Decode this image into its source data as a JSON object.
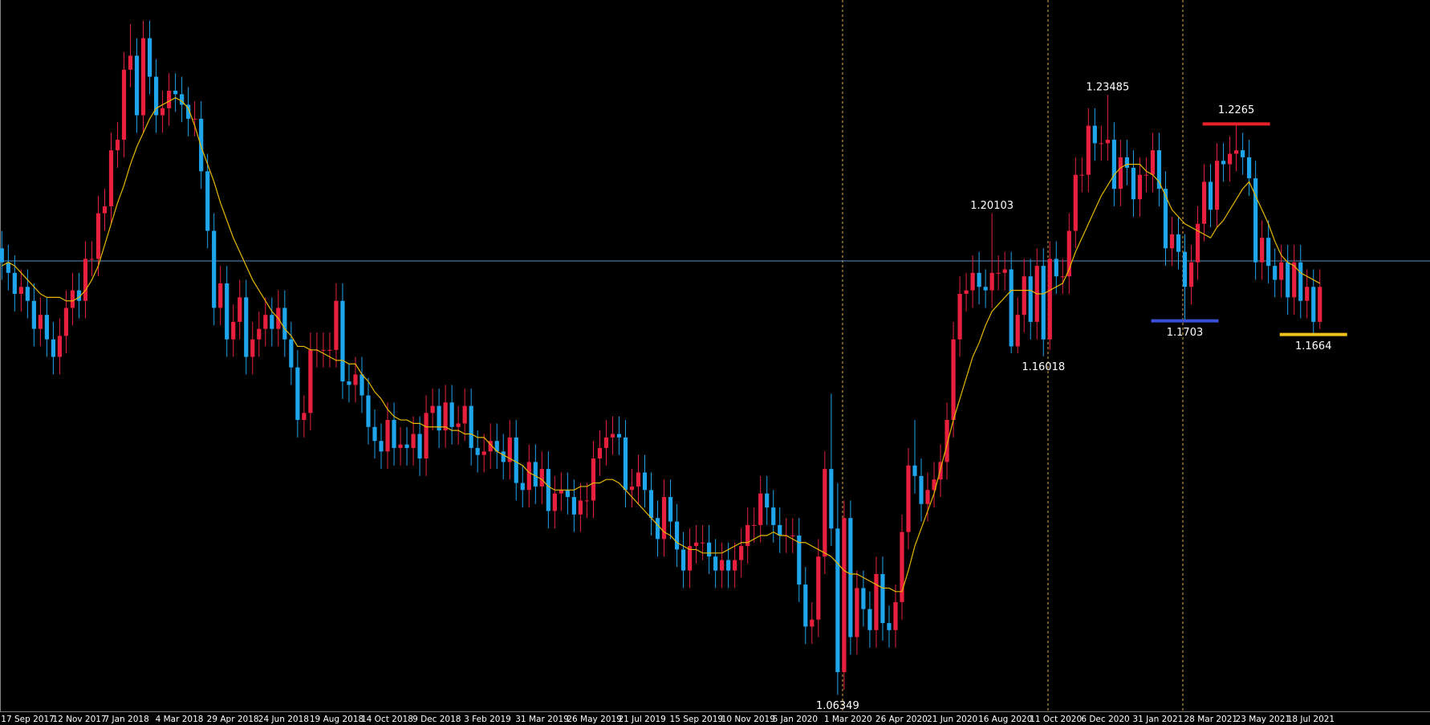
{
  "chart_data": {
    "type": "candlestick",
    "categories": [
      "17 Sep 2017",
      null,
      null,
      null,
      null,
      null,
      null,
      null,
      "12 Nov 2017",
      null,
      null,
      null,
      null,
      null,
      null,
      null,
      "7 Jan 2018",
      null,
      null,
      null,
      null,
      null,
      null,
      null,
      "4 Mar 2018",
      null,
      null,
      null,
      null,
      null,
      null,
      null,
      "29 Apr 2018",
      null,
      null,
      null,
      null,
      null,
      null,
      null,
      "24 Jun 2018",
      null,
      null,
      null,
      null,
      null,
      null,
      null,
      "19 Aug 2018",
      null,
      null,
      null,
      null,
      null,
      null,
      null,
      "14 Oct 2018",
      null,
      null,
      null,
      null,
      null,
      null,
      null,
      "9 Dec 2018",
      null,
      null,
      null,
      null,
      null,
      null,
      null,
      "3 Feb 2019",
      null,
      null,
      null,
      null,
      null,
      null,
      null,
      "31 Mar 2019",
      null,
      null,
      null,
      null,
      null,
      null,
      null,
      "26 May 2019",
      null,
      null,
      null,
      null,
      null,
      null,
      null,
      "21 Jul 2019",
      null,
      null,
      null,
      null,
      null,
      null,
      null,
      "15 Sep 2019",
      null,
      null,
      null,
      null,
      null,
      null,
      null,
      "10 Nov 2019",
      null,
      null,
      null,
      null,
      null,
      null,
      null,
      "5 Jan 2020",
      null,
      null,
      null,
      null,
      null,
      null,
      null,
      "1 Mar 2020",
      null,
      null,
      null,
      null,
      null,
      null,
      null,
      "26 Apr 2020",
      null,
      null,
      null,
      null,
      null,
      null,
      null,
      "21 Jun 2020",
      null,
      null,
      null,
      null,
      null,
      null,
      null,
      "16 Aug 2020",
      null,
      null,
      null,
      null,
      null,
      null,
      null,
      "11 Oct 2020",
      null,
      null,
      null,
      null,
      null,
      null,
      null,
      "6 Dec 2020",
      null,
      null,
      null,
      null,
      null,
      null,
      null,
      "31 Jan 2021",
      null,
      null,
      null,
      null,
      null,
      null,
      null,
      "28 Mar 2021",
      null,
      null,
      null,
      null,
      null,
      null,
      null,
      "23 May 2021",
      null,
      null,
      null,
      null,
      null,
      null,
      null,
      "18 Jul 2021",
      null,
      null,
      null,
      null,
      null
    ],
    "open": [
      1.191,
      1.187,
      1.184,
      1.178,
      1.18,
      1.176,
      1.168,
      1.172,
      1.165,
      1.16,
      1.166,
      1.174,
      1.179,
      1.176,
      1.188,
      1.188,
      1.201,
      1.203,
      1.219,
      1.222,
      1.242,
      1.246,
      1.229,
      1.251,
      1.24,
      1.229,
      1.231,
      1.236,
      1.235,
      1.232,
      1.228,
      1.228,
      1.213,
      1.196,
      1.174,
      1.181,
      1.165,
      1.17,
      1.177,
      1.16,
      1.165,
      1.168,
      1.172,
      1.168,
      1.174,
      1.165,
      1.157,
      1.142,
      1.144,
      1.162,
      1.162,
      1.162,
      1.162,
      1.176,
      1.153,
      1.152,
      1.155,
      1.149,
      1.14,
      1.136,
      1.133,
      1.142,
      1.134,
      1.135,
      1.134,
      1.138,
      1.131,
      1.144,
      1.146,
      1.139,
      1.147,
      1.14,
      1.141,
      1.146,
      1.134,
      1.132,
      1.133,
      1.136,
      1.133,
      1.13,
      1.137,
      1.124,
      1.122,
      1.13,
      1.123,
      1.128,
      1.116,
      1.121,
      1.122,
      1.12,
      1.115,
      1.119,
      1.119,
      1.131,
      1.134,
      1.137,
      1.138,
      1.137,
      1.122,
      1.123,
      1.127,
      1.122,
      1.114,
      1.108,
      1.12,
      1.113,
      1.105,
      1.099,
      1.106,
      1.107,
      1.107,
      1.103,
      1.099,
      1.102,
      1.099,
      1.102,
      1.106,
      1.112,
      1.112,
      1.121,
      1.117,
      1.112,
      1.109,
      1.109,
      1.109,
      1.095,
      1.083,
      1.085,
      1.103,
      1.128,
      1.111,
      1.07,
      1.114,
      1.08,
      1.094,
      1.088,
      1.082,
      1.098,
      1.084,
      1.082,
      1.09,
      1.11,
      1.129,
      1.126,
      1.118,
      1.122,
      1.125,
      1.13,
      1.142,
      1.165,
      1.178,
      1.179,
      1.184,
      1.18,
      1.179,
      1.184,
      1.184,
      1.185,
      1.163,
      1.172,
      1.183,
      1.17,
      1.186,
      1.165,
      1.188,
      1.183,
      1.183,
      1.196,
      1.212,
      1.212,
      1.226,
      1.221,
      1.221,
      1.222,
      1.208,
      1.217,
      1.214,
      1.205,
      1.212,
      1.212,
      1.219,
      1.208,
      1.191,
      1.195,
      1.19,
      1.18,
      1.187,
      1.198,
      1.21,
      1.202,
      1.216,
      1.215,
      1.218,
      1.219,
      1.217,
      1.211,
      1.187,
      1.194,
      1.186,
      1.182,
      1.187,
      1.177,
      1.187,
      1.176,
      1.18,
      1.17
    ],
    "high": [
      1.196,
      1.192,
      1.189,
      1.185,
      1.185,
      1.181,
      1.177,
      1.177,
      1.17,
      1.171,
      1.179,
      1.184,
      1.184,
      1.193,
      1.193,
      1.206,
      1.208,
      1.224,
      1.227,
      1.247,
      1.255,
      1.251,
      1.256,
      1.256,
      1.245,
      1.236,
      1.241,
      1.241,
      1.24,
      1.237,
      1.233,
      1.233,
      1.218,
      1.201,
      1.186,
      1.186,
      1.175,
      1.182,
      1.182,
      1.17,
      1.173,
      1.177,
      1.177,
      1.179,
      1.179,
      1.17,
      1.162,
      1.149,
      1.167,
      1.167,
      1.167,
      1.167,
      1.181,
      1.181,
      1.158,
      1.16,
      1.16,
      1.154,
      1.145,
      1.141,
      1.147,
      1.147,
      1.14,
      1.14,
      1.143,
      1.143,
      1.149,
      1.151,
      1.151,
      1.152,
      1.152,
      1.146,
      1.151,
      1.151,
      1.139,
      1.138,
      1.141,
      1.141,
      1.138,
      1.142,
      1.142,
      1.129,
      1.135,
      1.135,
      1.133,
      1.133,
      1.126,
      1.127,
      1.127,
      1.125,
      1.124,
      1.124,
      1.136,
      1.139,
      1.142,
      1.143,
      1.143,
      1.142,
      1.128,
      1.132,
      1.132,
      1.127,
      1.119,
      1.125,
      1.125,
      1.118,
      1.11,
      1.111,
      1.112,
      1.112,
      1.112,
      1.108,
      1.107,
      1.107,
      1.107,
      1.111,
      1.117,
      1.117,
      1.126,
      1.126,
      1.122,
      1.117,
      1.114,
      1.114,
      1.114,
      1.1,
      1.09,
      1.108,
      1.133,
      1.1495,
      1.124,
      1.119,
      1.119,
      1.099,
      1.099,
      1.093,
      1.103,
      1.103,
      1.089,
      1.095,
      1.115,
      1.134,
      1.142,
      1.131,
      1.127,
      1.13,
      1.135,
      1.147,
      1.17,
      1.183,
      1.184,
      1.189,
      1.19,
      1.185,
      1.20103,
      1.189,
      1.19,
      1.19,
      1.177,
      1.188,
      1.188,
      1.191,
      1.191,
      1.193,
      1.193,
      1.188,
      1.201,
      1.217,
      1.217,
      1.231,
      1.231,
      1.226,
      1.23485,
      1.227,
      1.222,
      1.222,
      1.219,
      1.217,
      1.217,
      1.224,
      1.224,
      1.213,
      1.2,
      1.2,
      1.195,
      1.192,
      1.203,
      1.215,
      1.215,
      1.221,
      1.221,
      1.223,
      1.2265,
      1.224,
      1.222,
      1.216,
      1.199,
      1.199,
      1.191,
      1.192,
      1.192,
      1.192,
      1.192,
      1.185,
      1.185,
      1.185
    ],
    "low": [
      1.182,
      1.179,
      1.173,
      1.173,
      1.171,
      1.163,
      1.163,
      1.16,
      1.155,
      1.155,
      1.161,
      1.169,
      1.171,
      1.171,
      1.183,
      1.183,
      1.196,
      1.198,
      1.214,
      1.217,
      1.237,
      1.224,
      1.224,
      1.235,
      1.224,
      1.224,
      1.226,
      1.23,
      1.227,
      1.223,
      1.223,
      1.208,
      1.191,
      1.169,
      1.169,
      1.16,
      1.16,
      1.165,
      1.155,
      1.155,
      1.16,
      1.163,
      1.163,
      1.163,
      1.16,
      1.152,
      1.137,
      1.137,
      1.139,
      1.157,
      1.157,
      1.157,
      1.157,
      1.148,
      1.147,
      1.147,
      1.144,
      1.135,
      1.131,
      1.128,
      1.128,
      1.129,
      1.129,
      1.129,
      1.129,
      1.126,
      1.126,
      1.139,
      1.134,
      1.134,
      1.135,
      1.135,
      1.136,
      1.129,
      1.127,
      1.127,
      1.128,
      1.128,
      1.125,
      1.125,
      1.119,
      1.117,
      1.117,
      1.118,
      1.118,
      1.111,
      1.111,
      1.116,
      1.115,
      1.11,
      1.11,
      1.114,
      1.114,
      1.126,
      1.129,
      1.132,
      1.132,
      1.117,
      1.117,
      1.118,
      1.117,
      1.109,
      1.103,
      1.103,
      1.108,
      1.1,
      1.094,
      1.094,
      1.101,
      1.102,
      1.098,
      1.094,
      1.094,
      1.094,
      1.094,
      1.097,
      1.101,
      1.107,
      1.107,
      1.112,
      1.107,
      1.104,
      1.104,
      1.104,
      1.09,
      1.078,
      1.078,
      1.08,
      1.098,
      1.106,
      1.06349,
      1.065,
      1.075,
      1.075,
      1.083,
      1.077,
      1.077,
      1.079,
      1.077,
      1.077,
      1.085,
      1.105,
      1.121,
      1.113,
      1.113,
      1.117,
      1.12,
      1.125,
      1.137,
      1.16,
      1.173,
      1.174,
      1.175,
      1.174,
      1.174,
      1.179,
      1.179,
      1.161,
      1.161,
      1.167,
      1.165,
      1.165,
      1.16018,
      1.162,
      1.178,
      1.178,
      1.178,
      1.191,
      1.207,
      1.207,
      1.216,
      1.216,
      1.216,
      1.203,
      1.203,
      1.209,
      1.2,
      1.2,
      1.207,
      1.207,
      1.203,
      1.186,
      1.186,
      1.185,
      1.1703,
      1.175,
      1.182,
      1.193,
      1.197,
      1.197,
      1.21,
      1.21,
      1.213,
      1.212,
      1.206,
      1.182,
      1.182,
      1.181,
      1.177,
      1.177,
      1.172,
      1.172,
      1.171,
      1.171,
      1.1664,
      1.168
    ],
    "close": [
      1.187,
      1.184,
      1.178,
      1.18,
      1.176,
      1.168,
      1.172,
      1.165,
      1.16,
      1.166,
      1.174,
      1.179,
      1.176,
      1.188,
      1.188,
      1.201,
      1.203,
      1.219,
      1.222,
      1.242,
      1.246,
      1.229,
      1.251,
      1.24,
      1.229,
      1.231,
      1.236,
      1.235,
      1.232,
      1.228,
      1.228,
      1.213,
      1.196,
      1.174,
      1.181,
      1.165,
      1.17,
      1.177,
      1.16,
      1.165,
      1.168,
      1.172,
      1.168,
      1.174,
      1.165,
      1.157,
      1.142,
      1.144,
      1.162,
      1.162,
      1.162,
      1.162,
      1.176,
      1.153,
      1.152,
      1.155,
      1.149,
      1.14,
      1.136,
      1.133,
      1.142,
      1.134,
      1.135,
      1.134,
      1.138,
      1.131,
      1.144,
      1.146,
      1.139,
      1.147,
      1.14,
      1.141,
      1.146,
      1.134,
      1.132,
      1.133,
      1.136,
      1.133,
      1.13,
      1.137,
      1.124,
      1.122,
      1.13,
      1.123,
      1.128,
      1.116,
      1.121,
      1.122,
      1.12,
      1.115,
      1.119,
      1.119,
      1.131,
      1.134,
      1.137,
      1.138,
      1.137,
      1.122,
      1.123,
      1.127,
      1.122,
      1.114,
      1.108,
      1.12,
      1.113,
      1.105,
      1.099,
      1.106,
      1.107,
      1.107,
      1.103,
      1.099,
      1.102,
      1.099,
      1.102,
      1.106,
      1.112,
      1.112,
      1.121,
      1.117,
      1.112,
      1.109,
      1.109,
      1.109,
      1.095,
      1.083,
      1.085,
      1.103,
      1.128,
      1.111,
      1.07,
      1.114,
      1.08,
      1.094,
      1.088,
      1.082,
      1.098,
      1.084,
      1.082,
      1.09,
      1.11,
      1.129,
      1.126,
      1.118,
      1.122,
      1.125,
      1.13,
      1.142,
      1.165,
      1.178,
      1.179,
      1.184,
      1.18,
      1.179,
      1.184,
      1.184,
      1.185,
      1.163,
      1.172,
      1.183,
      1.17,
      1.186,
      1.165,
      1.188,
      1.183,
      1.183,
      1.196,
      1.212,
      1.212,
      1.226,
      1.221,
      1.221,
      1.222,
      1.208,
      1.217,
      1.214,
      1.205,
      1.212,
      1.212,
      1.219,
      1.208,
      1.191,
      1.195,
      1.19,
      1.18,
      1.187,
      1.198,
      1.21,
      1.202,
      1.216,
      1.215,
      1.218,
      1.219,
      1.217,
      1.211,
      1.187,
      1.194,
      1.186,
      1.182,
      1.187,
      1.177,
      1.187,
      1.176,
      1.18,
      1.17,
      1.18
    ],
    "ma_values": [
      1.186,
      1.187,
      1.186,
      1.184,
      1.182,
      1.18,
      1.178,
      1.177,
      1.177,
      1.177,
      1.176,
      1.176,
      1.177,
      1.179,
      1.182,
      1.186,
      1.192,
      1.198,
      1.204,
      1.209,
      1.215,
      1.22,
      1.224,
      1.228,
      1.231,
      1.232,
      1.233,
      1.234,
      1.233,
      1.231,
      1.226,
      1.22,
      1.215,
      1.21,
      1.204,
      1.199,
      1.194,
      1.19,
      1.186,
      1.182,
      1.179,
      1.176,
      1.173,
      1.171,
      1.168,
      1.166,
      1.163,
      1.163,
      1.162,
      1.162,
      1.161,
      1.16,
      1.159,
      1.159,
      1.158,
      1.158,
      1.155,
      1.153,
      1.15,
      1.148,
      1.145,
      1.143,
      1.142,
      1.142,
      1.141,
      1.141,
      1.14,
      1.14,
      1.14,
      1.14,
      1.139,
      1.139,
      1.138,
      1.138,
      1.137,
      1.137,
      1.135,
      1.133,
      1.132,
      1.131,
      1.13,
      1.129,
      1.127,
      1.126,
      1.125,
      1.123,
      1.122,
      1.122,
      1.122,
      1.122,
      1.123,
      1.123,
      1.124,
      1.124,
      1.125,
      1.125,
      1.124,
      1.122,
      1.12,
      1.118,
      1.116,
      1.114,
      1.112,
      1.11,
      1.109,
      1.107,
      1.106,
      1.105,
      1.105,
      1.104,
      1.104,
      1.104,
      1.104,
      1.105,
      1.106,
      1.107,
      1.107,
      1.108,
      1.109,
      1.109,
      1.11,
      1.109,
      1.109,
      1.108,
      1.107,
      1.107,
      1.106,
      1.105,
      1.104,
      1.103,
      1.101,
      1.099,
      1.098,
      1.098,
      1.097,
      1.096,
      1.095,
      1.094,
      1.094,
      1.093,
      1.093,
      1.099,
      1.106,
      1.111,
      1.116,
      1.121,
      1.128,
      1.135,
      1.142,
      1.148,
      1.154,
      1.16,
      1.164,
      1.169,
      1.173,
      1.175,
      1.177,
      1.179,
      1.179,
      1.179,
      1.179,
      1.178,
      1.178,
      1.179,
      1.18,
      1.181,
      1.185,
      1.19,
      1.194,
      1.198,
      1.202,
      1.206,
      1.209,
      1.212,
      1.214,
      1.215,
      1.215,
      1.215,
      1.213,
      1.212,
      1.21,
      1.206,
      1.202,
      1.2,
      1.198,
      1.197,
      1.196,
      1.195,
      1.194,
      1.197,
      1.199,
      1.202,
      1.205,
      1.208,
      1.21,
      1.206,
      1.202,
      1.198,
      1.193,
      1.189,
      1.187,
      1.186,
      1.184,
      1.183,
      1.182,
      1.181
    ],
    "ma_color": "#e6b800",
    "up_color": "#e8203e",
    "down_color": "#1ea5ec",
    "ylim": [
      1.0588,
      1.2619
    ],
    "annotations": [
      {
        "value": 1.23485
      },
      {
        "value": 1.2265,
        "color": "#e8202a"
      },
      {
        "value": 1.20103
      },
      {
        "value": 1.16018
      },
      {
        "value": 1.1703,
        "color": "#3b4fd6"
      },
      {
        "value": 1.1664,
        "color": "#f0c21c"
      },
      {
        "value": 1.06349
      }
    ]
  }
}
